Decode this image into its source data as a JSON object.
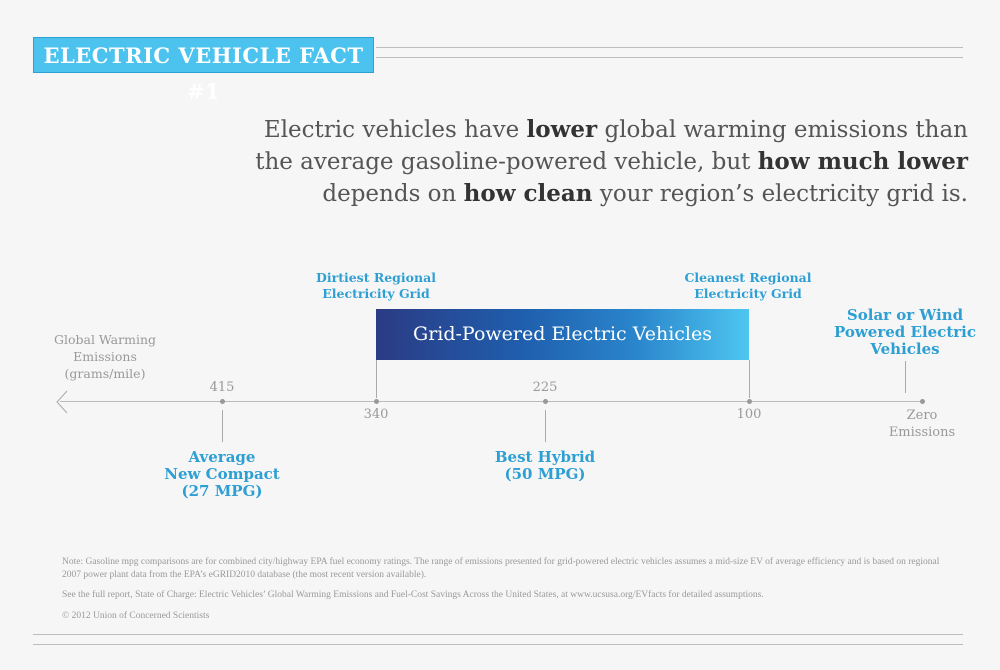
{
  "header": {
    "badge": "ELECTRIC VEHICLE FACT #1"
  },
  "headline": {
    "l1a": "Electric vehicles have ",
    "l1b": "lower",
    "l1c": " global warming emissions than",
    "l2a": "the average gasoline-powered vehicle, but ",
    "l2b": "how much lower",
    "l3a": "depends on ",
    "l3b": "how clean",
    "l3c": " your region’s electricity grid is."
  },
  "axis": {
    "label": [
      "Global Warming",
      "Emissions",
      "(grams/mile)"
    ],
    "ticks": [
      "415",
      "340",
      "225",
      "100"
    ],
    "zero": [
      "Zero",
      "Emissions"
    ]
  },
  "callouts": {
    "dirtiest": [
      "Dirtiest Regional",
      "Electricity Grid"
    ],
    "cleanest": [
      "Cleanest Regional",
      "Electricity Grid"
    ],
    "bar": "Grid-Powered Electric Vehicles",
    "solar": [
      "Solar or Wind",
      "Powered Electric",
      "Vehicles"
    ],
    "compact": [
      "Average",
      "New Compact",
      "(27 MPG)"
    ],
    "hybrid": [
      "Best Hybrid",
      "(50 MPG)"
    ]
  },
  "notes": [
    "Note: Gasoline mpg comparisons are for combined city/highway EPA fuel economy ratings. The range of emissions presented for grid-powered electric vehicles assumes a mid-size EV of average efficiency and is based on regional 2007 power plant data from the EPA’s eGRID2010 database (the most recent version available).",
    "See the full report, State of Charge: Electric Vehicles’ Global Warming Emissions and Fuel-Cost Savings Across the United States, at www.ucsusa.org/EVfacts for detailed assumptions.",
    "© 2012 Union of Concerned Scientists"
  ],
  "colors": {
    "accent": "#4cc3ee",
    "label_blue": "#2e9fd3",
    "bar_start": "#2b3b84",
    "bar_end": "#4ec6f0"
  }
}
